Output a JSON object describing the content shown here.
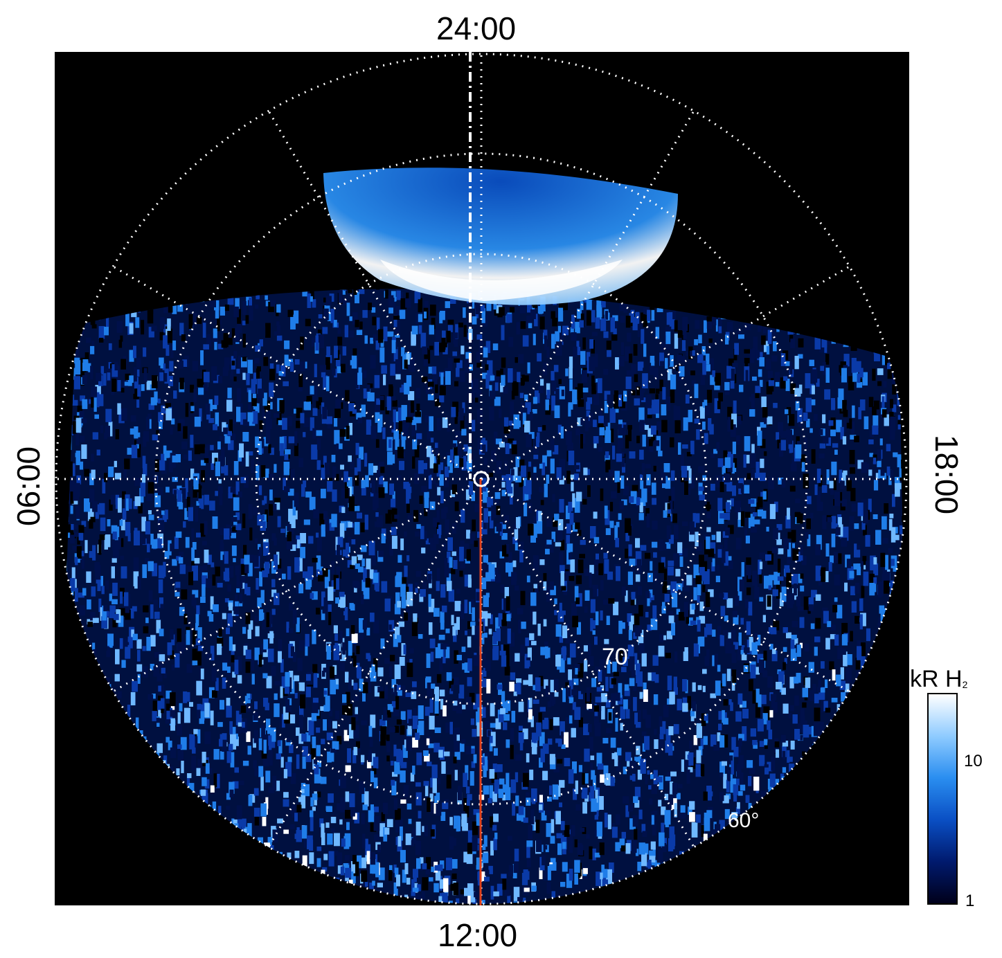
{
  "labels": {
    "top": "24:00",
    "bottom": "12:00",
    "left": "06:00",
    "right": "18:00"
  },
  "grid_labels": {
    "lat70": "70",
    "lat60": "60°"
  },
  "colorbar": {
    "title_main": "kR H",
    "title_sub": "2",
    "ticks": [
      "10",
      "1"
    ],
    "colors": [
      "#00001a",
      "#001a6e",
      "#0a4fc4",
      "#2a8ef0",
      "#8fcbff",
      "#ffffff"
    ]
  },
  "colors": {
    "background": "#000000",
    "meridian": "#e0401a",
    "grid": "#ffffff"
  }
}
